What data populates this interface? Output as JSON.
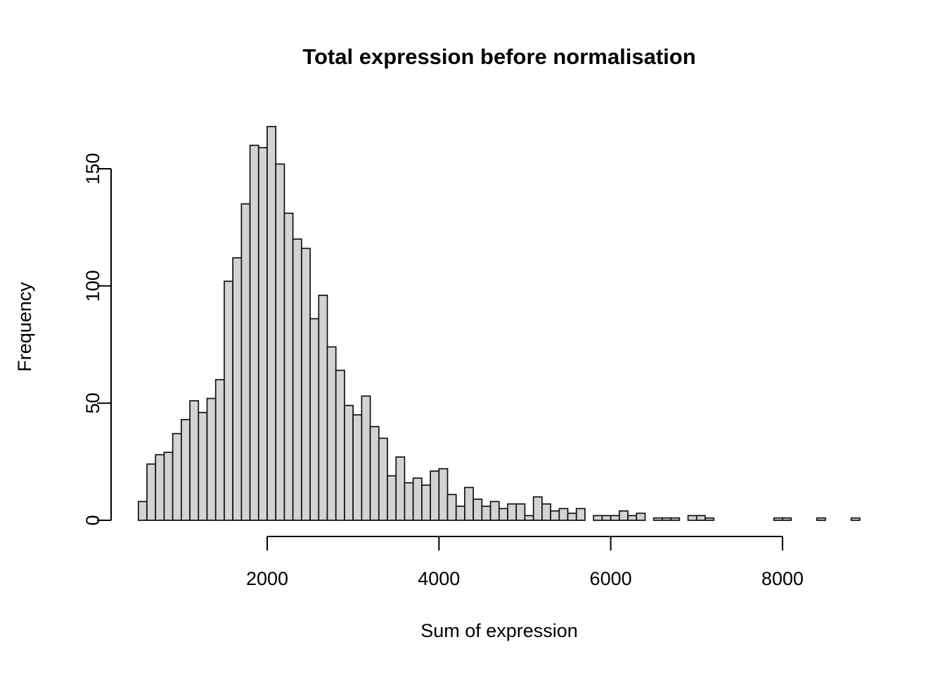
{
  "title": "Total expression before normalisation",
  "chart_data": {
    "type": "bar",
    "subtype": "histogram",
    "title": "Total expression before normalisation",
    "xlabel": "Sum of expression",
    "ylabel": "Frequency",
    "bin_start": 500,
    "bin_width": 100,
    "counts": [
      8,
      24,
      28,
      29,
      37,
      43,
      51,
      46,
      52,
      60,
      102,
      112,
      135,
      160,
      159,
      168,
      152,
      131,
      120,
      116,
      86,
      96,
      74,
      64,
      49,
      45,
      53,
      40,
      35,
      19,
      27,
      16,
      18,
      15,
      21,
      22,
      11,
      6,
      14,
      9,
      6,
      8,
      5,
      7,
      7,
      2,
      10,
      7,
      4,
      5,
      3,
      5,
      0,
      2,
      2,
      2,
      4,
      2,
      3,
      0,
      1,
      1,
      1,
      0,
      2,
      2,
      1,
      0,
      0,
      0,
      0,
      0,
      0,
      0,
      1,
      1,
      0,
      0,
      0,
      1,
      0,
      0,
      0,
      1
    ],
    "x_ticks": [
      2000,
      4000,
      6000,
      8000
    ],
    "x_tick_labels": [
      "2000",
      "4000",
      "6000",
      "8000"
    ],
    "y_ticks": [
      0,
      50,
      100,
      150
    ],
    "y_tick_labels": [
      "0",
      "50",
      "100",
      "150"
    ],
    "xlim": [
      500,
      8900
    ],
    "ylim": [
      0,
      168
    ],
    "grid": "off",
    "legend": "none",
    "bar_fill": "#d3d3d3",
    "bar_stroke": "#111111",
    "axis_color": "#000000",
    "background": "#ffffff"
  }
}
